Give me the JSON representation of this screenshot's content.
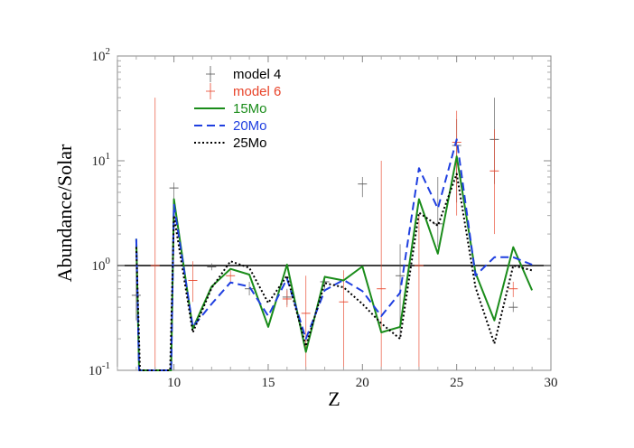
{
  "chart_data": {
    "type": "line",
    "xlabel": "Z",
    "ylabel": "Abundance/Solar",
    "xlim": [
      7,
      30
    ],
    "ylim": [
      0.1,
      100
    ],
    "yscale": "log",
    "x_ticks": [
      10,
      15,
      20,
      25,
      30
    ],
    "y_ticks": [
      {
        "value": 0.1,
        "base": "10",
        "exp": "-1"
      },
      {
        "value": 1,
        "base": "10",
        "exp": "0"
      },
      {
        "value": 10,
        "base": "10",
        "exp": "1"
      },
      {
        "value": 100,
        "base": "10",
        "exp": "2"
      }
    ],
    "reference_line": 1,
    "legend_position": "top-left",
    "series": [
      {
        "name": "15Mo",
        "style": "solid",
        "color": "#1a8c1a",
        "x": [
          8,
          8.15,
          9.85,
          10,
          11,
          12,
          13,
          14,
          15,
          16,
          17,
          18,
          19,
          20,
          21,
          22,
          23,
          24,
          25,
          26,
          27,
          28,
          29
        ],
        "y": [
          1.8,
          0.1,
          0.1,
          4.3,
          0.25,
          0.63,
          0.93,
          0.82,
          0.26,
          1.02,
          0.15,
          0.78,
          0.72,
          0.98,
          0.23,
          0.26,
          4.3,
          1.3,
          11.0,
          0.85,
          0.3,
          1.5,
          0.58
        ]
      },
      {
        "name": "20Mo",
        "style": "dashed",
        "color": "#1f3fe0",
        "x": [
          8,
          8.15,
          9.85,
          10,
          11,
          12,
          13,
          14,
          15,
          16,
          17,
          18,
          19,
          20,
          21,
          22,
          23,
          24,
          25,
          26,
          27,
          28,
          29
        ],
        "y": [
          1.8,
          0.1,
          0.1,
          3.8,
          0.26,
          0.43,
          0.69,
          0.63,
          0.33,
          0.75,
          0.2,
          0.58,
          0.73,
          0.57,
          0.33,
          0.55,
          8.5,
          3.5,
          16.0,
          0.8,
          1.2,
          1.2,
          1.02
        ]
      },
      {
        "name": "25Mo",
        "style": "dotted",
        "color": "#000000",
        "x": [
          8,
          8.2,
          9.8,
          10,
          11,
          12,
          13,
          14,
          15,
          16,
          17,
          18,
          19,
          20,
          21,
          22,
          23,
          24,
          25,
          26,
          27,
          28,
          29
        ],
        "y": [
          1.5,
          0.1,
          0.1,
          3.0,
          0.23,
          0.61,
          1.1,
          0.95,
          0.44,
          0.8,
          0.17,
          0.68,
          0.62,
          0.43,
          0.28,
          0.2,
          3.2,
          2.4,
          7.5,
          0.62,
          0.18,
          1.0,
          0.9
        ]
      }
    ],
    "observations": [
      {
        "name": "model 4",
        "color": "#555555",
        "points": [
          {
            "x": 8,
            "y": 0.52,
            "lo": 0.3,
            "hi": 1.4
          },
          {
            "x": 10,
            "y": 5.5,
            "lo": 4.2,
            "hi": 6.2
          },
          {
            "x": 12,
            "y": 0.97,
            "lo": 0.9,
            "hi": 1.05
          },
          {
            "x": 14,
            "y": 0.6,
            "lo": 0.52,
            "hi": 0.7
          },
          {
            "x": 16,
            "y": 0.5,
            "lo": 0.42,
            "hi": 0.6
          },
          {
            "x": 18,
            "y": 0.7,
            "lo": 0.6,
            "hi": 0.8
          },
          {
            "x": 20,
            "y": 6.0,
            "lo": 4.5,
            "hi": 7.0
          },
          {
            "x": 22,
            "y": 0.8,
            "lo": 0.2,
            "hi": 1.6
          },
          {
            "x": 24,
            "y": 2.5,
            "lo": 1.5,
            "hi": 7.0
          },
          {
            "x": 25,
            "y": 14.0,
            "lo": 4.0,
            "hi": 25.0
          },
          {
            "x": 27,
            "y": 16.0,
            "lo": 6.0,
            "hi": 40.0
          },
          {
            "x": 28,
            "y": 0.4,
            "lo": 0.36,
            "hi": 0.45
          }
        ]
      },
      {
        "name": "model 6",
        "color": "#e8442a",
        "points": [
          {
            "x": 9,
            "y": 1.0,
            "lo": 0.1,
            "hi": 40.0
          },
          {
            "x": 11,
            "y": 0.72,
            "lo": 0.45,
            "hi": 1.1
          },
          {
            "x": 13,
            "y": 0.8,
            "lo": 0.7,
            "hi": 0.9
          },
          {
            "x": 16,
            "y": 0.48,
            "lo": 0.4,
            "hi": 0.58
          },
          {
            "x": 17,
            "y": 0.35,
            "lo": 0.1,
            "hi": 0.8
          },
          {
            "x": 19,
            "y": 0.45,
            "lo": 0.1,
            "hi": 0.9
          },
          {
            "x": 21,
            "y": 0.6,
            "lo": 0.1,
            "hi": 10.0
          },
          {
            "x": 23,
            "y": 1.0,
            "lo": 0.1,
            "hi": 3.0
          },
          {
            "x": 25,
            "y": 15.0,
            "lo": 3.0,
            "hi": 30.0
          },
          {
            "x": 27,
            "y": 8.0,
            "lo": 2.0,
            "hi": 20.0
          },
          {
            "x": 28,
            "y": 0.6,
            "lo": 0.5,
            "hi": 0.7
          }
        ]
      }
    ]
  }
}
